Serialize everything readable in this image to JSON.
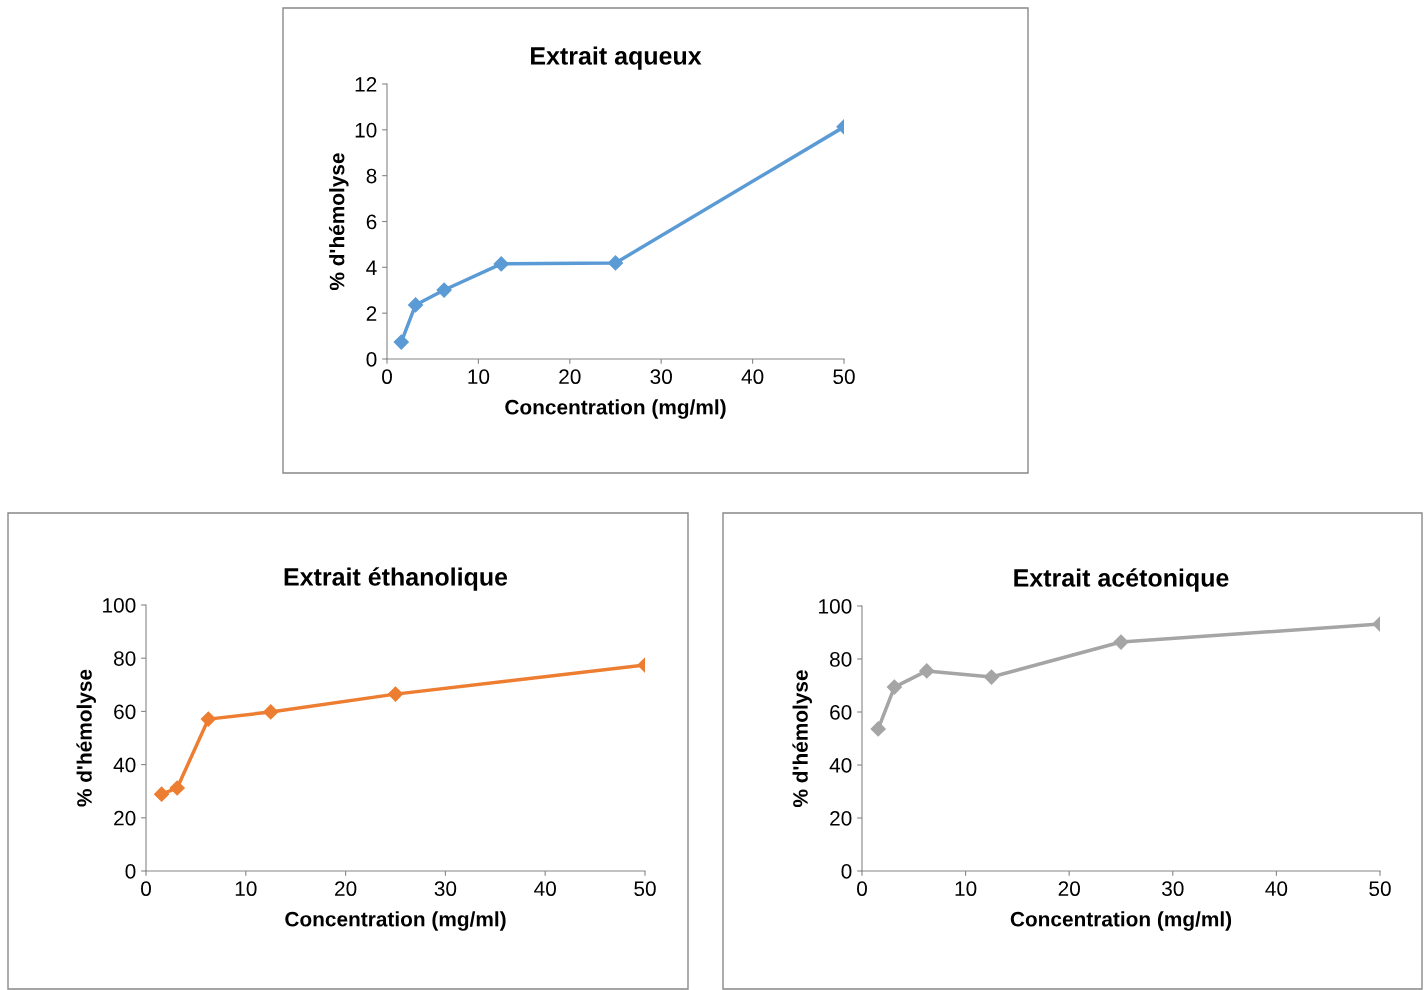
{
  "chart_data": [
    {
      "type": "line",
      "title": "Extrait aqueux",
      "xlabel": "Concentration (mg/ml)",
      "ylabel": "% d'hémolyse",
      "x": [
        1.5625,
        3.125,
        6.25,
        12.5,
        25,
        50
      ],
      "series": [
        {
          "color": "#5b9bd5",
          "values": [
            0.74,
            2.36,
            3.01,
            4.15,
            4.19,
            10.13
          ]
        }
      ],
      "xlim": [
        0,
        50
      ],
      "xticks": [
        0,
        10,
        20,
        30,
        40,
        50
      ],
      "ylim": [
        0,
        12
      ],
      "yticks": [
        0,
        2,
        4,
        6,
        8,
        10,
        12
      ],
      "marker": "diamond",
      "grid": false,
      "legend": false
    },
    {
      "type": "line",
      "title": "Extrait éthanolique",
      "xlabel": "Concentration (mg/ml)",
      "ylabel": "% d'hémolyse",
      "x": [
        1.5625,
        3.125,
        6.25,
        12.5,
        25,
        50
      ],
      "series": [
        {
          "color": "#ed7d31",
          "values": [
            28.9,
            31.2,
            57.1,
            59.8,
            66.5,
            77.4
          ]
        }
      ],
      "xlim": [
        0,
        50
      ],
      "xticks": [
        0,
        10,
        20,
        30,
        40,
        50
      ],
      "ylim": [
        0,
        100
      ],
      "yticks": [
        0,
        20,
        40,
        60,
        80,
        100
      ],
      "marker": "diamond",
      "grid": false,
      "legend": false
    },
    {
      "type": "line",
      "title": "Extrait acétonique",
      "xlabel": "Concentration (mg/ml)",
      "ylabel": "% d'hémolyse",
      "x": [
        1.5625,
        3.125,
        6.25,
        12.5,
        25,
        50
      ],
      "series": [
        {
          "color": "#a5a5a5",
          "values": [
            53.6,
            69.4,
            75.5,
            73.2,
            86.4,
            93.2
          ]
        }
      ],
      "xlim": [
        0,
        50
      ],
      "xticks": [
        0,
        10,
        20,
        30,
        40,
        50
      ],
      "ylim": [
        0,
        100
      ],
      "yticks": [
        0,
        20,
        40,
        60,
        80,
        100
      ],
      "marker": "diamond",
      "grid": false,
      "legend": false
    }
  ]
}
